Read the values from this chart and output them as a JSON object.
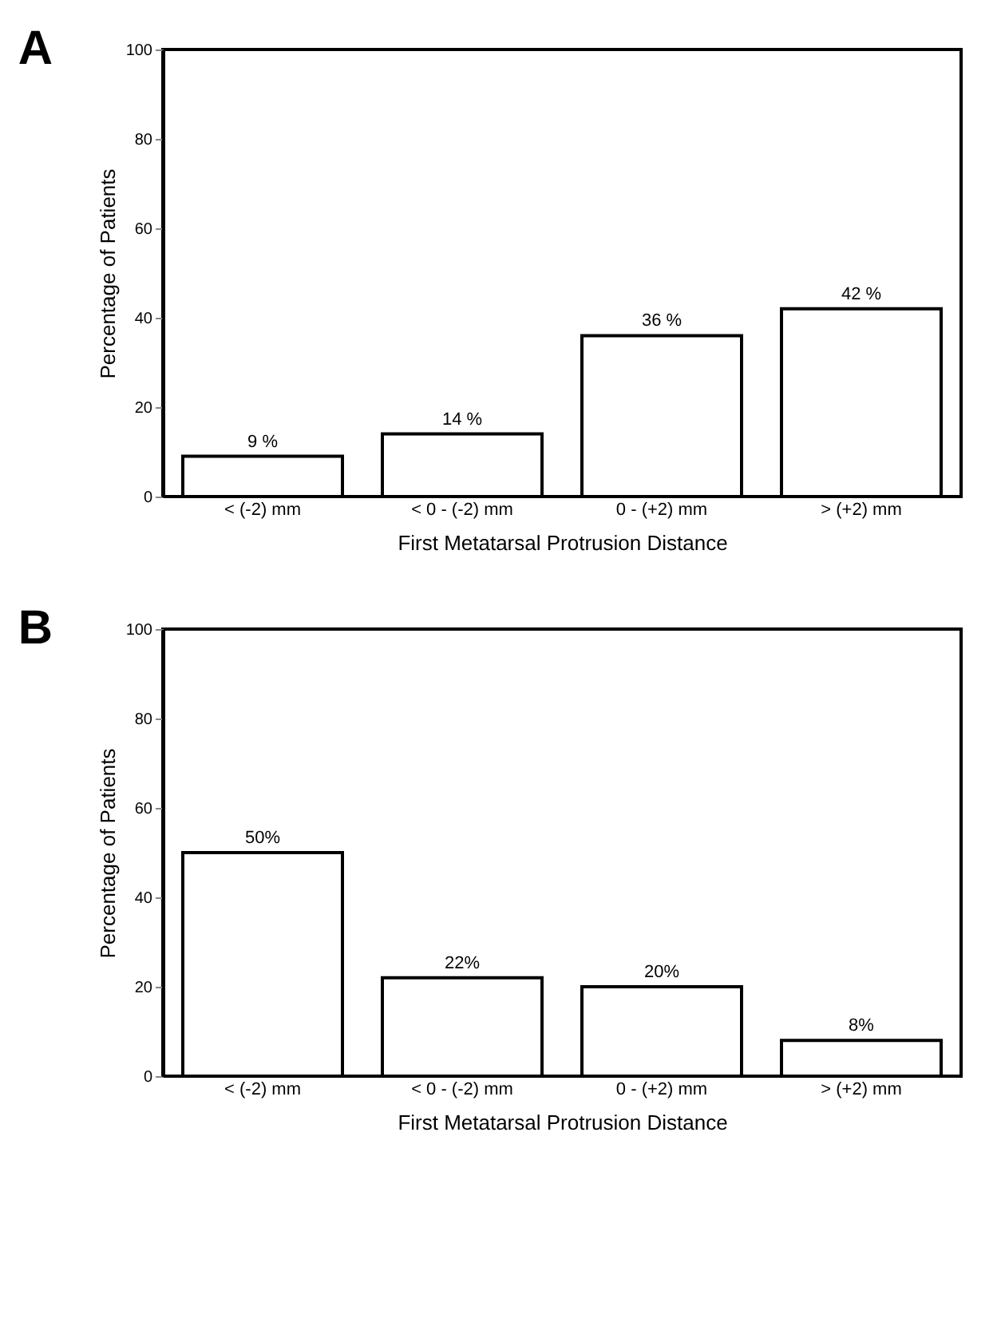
{
  "chart_data": [
    {
      "type": "bar",
      "title": "A",
      "xlabel": "First Metatarsal Protrusion Distance",
      "ylabel": "Percentage of Patients",
      "categories": [
        "< (-2) mm",
        "< 0 - (-2) mm",
        "0 - (+2) mm",
        "> (+2) mm"
      ],
      "values": [
        9,
        14,
        36,
        42
      ],
      "value_labels": [
        "9 %",
        "14 %",
        "36 %",
        "42 %"
      ],
      "color": "#ffffff",
      "ylim": [
        0,
        100
      ],
      "yticks": [
        0,
        20,
        40,
        60,
        80,
        100
      ]
    },
    {
      "type": "bar",
      "title": "B",
      "xlabel": "First Metatarsal Protrusion Distance",
      "ylabel": "Percentage of Patients",
      "categories": [
        "< (-2) mm",
        "< 0 - (-2) mm",
        "0 - (+2) mm",
        "> (+2) mm"
      ],
      "values": [
        50,
        22,
        20,
        8
      ],
      "value_labels": [
        "50%",
        "22%",
        "20%",
        "8%"
      ],
      "color": "#ffffff",
      "ylim": [
        0,
        100
      ],
      "yticks": [
        0,
        20,
        40,
        60,
        80,
        100
      ]
    }
  ]
}
